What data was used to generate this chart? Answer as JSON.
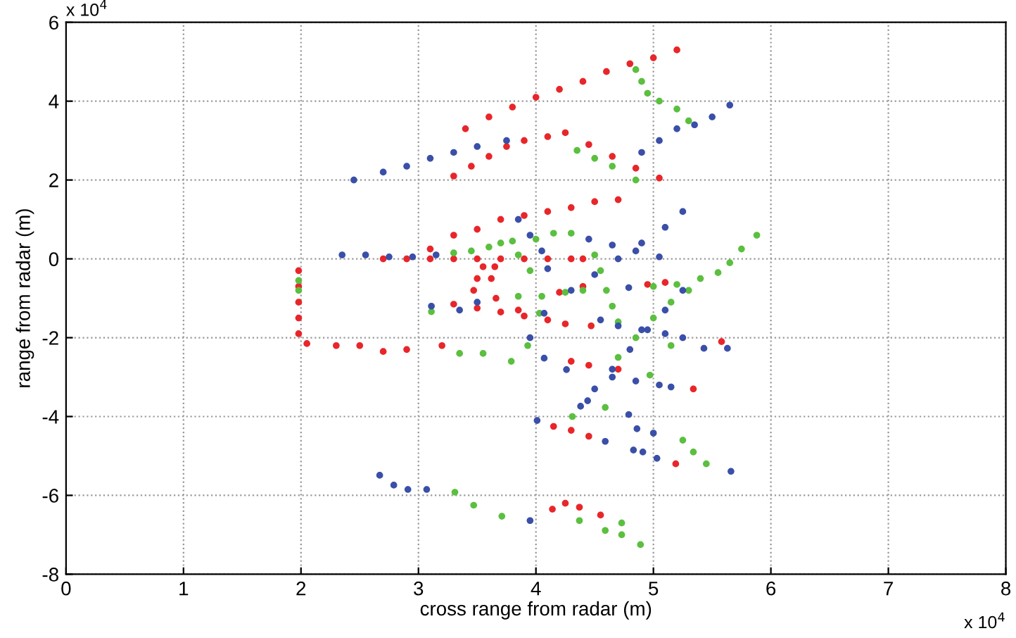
{
  "chart_data": {
    "type": "scatter",
    "xlabel": "cross range from radar (m)",
    "ylabel": "range from radar (m)",
    "annotations": [
      "x 10$^{4}$",
      "x 10$^{4}$"
    ],
    "xlim": [
      0,
      8
    ],
    "ylim": [
      -8,
      6
    ],
    "xticks": [
      0,
      1,
      2,
      3,
      4,
      5,
      6,
      7,
      8
    ],
    "yticks": [
      -8,
      -6,
      -4,
      -2,
      0,
      2,
      4,
      6
    ],
    "grid": true,
    "legend": false,
    "marker": "circle",
    "series": [
      {
        "color": "#e8262a",
        "x": [
          3.4,
          3.6,
          3.8,
          4.0,
          4.2,
          4.4,
          4.6,
          4.8,
          5.0,
          5.2,
          3.3,
          3.45,
          3.6,
          3.75,
          3.9,
          4.1,
          4.25,
          4.45,
          4.65,
          4.85,
          5.05,
          3.1,
          3.3,
          3.5,
          3.7,
          3.9,
          4.1,
          4.3,
          4.5,
          4.7,
          2.7,
          2.9,
          3.1,
          3.3,
          3.5,
          3.7,
          3.9,
          4.1,
          4.3,
          4.4,
          3.55,
          3.5,
          3.47,
          3.65,
          3.62,
          1.98,
          1.98,
          1.98,
          1.98,
          1.98,
          2.05,
          2.3,
          2.5,
          2.7,
          2.9,
          3.2,
          3.3,
          3.5,
          3.7,
          3.9,
          4.1,
          4.25,
          3.66,
          3.85,
          4.2,
          4.4,
          4.95,
          5.1,
          4.47,
          4.3,
          4.45,
          4.7,
          5.34,
          5.58,
          4.15,
          4.3,
          4.45,
          5.19,
          4.25,
          4.37,
          4.14,
          4.55
        ],
        "values": [
          3.3,
          3.6,
          3.85,
          4.1,
          4.3,
          4.5,
          4.75,
          4.95,
          5.1,
          5.3,
          2.1,
          2.35,
          2.6,
          2.85,
          3.0,
          3.1,
          3.2,
          2.9,
          2.6,
          2.3,
          2.05,
          0.25,
          0.6,
          0.75,
          1.0,
          1.1,
          1.2,
          1.3,
          1.45,
          1.5,
          0,
          0,
          0,
          0,
          0,
          0,
          0,
          0,
          0,
          0,
          -0.2,
          -0.5,
          -0.8,
          -0.2,
          -0.5,
          -0.3,
          -0.7,
          -1.1,
          -1.5,
          -1.9,
          -2.15,
          -2.2,
          -2.2,
          -2.35,
          -2.3,
          -2.2,
          -1.15,
          -1.25,
          -1.35,
          -1.45,
          -1.55,
          -1.65,
          -1.0,
          -1.3,
          -0.85,
          -0.7,
          -0.65,
          -0.6,
          -1.7,
          -2.6,
          -2.7,
          -2.8,
          -3.3,
          -2.1,
          -4.25,
          -4.35,
          -4.5,
          -5.2,
          -6.2,
          -6.3,
          -6.35,
          -6.5
        ]
      },
      {
        "color": "#5bbf3f",
        "x": [
          4.85,
          4.9,
          4.95,
          5.05,
          5.2,
          5.3,
          4.35,
          4.5,
          4.65,
          4.85,
          3.3,
          3.45,
          3.6,
          3.8,
          4.0,
          4.15,
          4.3,
          3.7,
          3.85,
          3.95,
          5.0,
          5.2,
          5.4,
          5.55,
          5.65,
          5.75,
          5.88,
          4.7,
          4.85,
          5.0,
          5.15,
          5.3,
          4.5,
          4.55,
          4.6,
          4.65,
          4.7,
          3.85,
          4.05,
          4.25,
          4.4,
          1.98,
          1.98,
          3.11,
          4.03,
          3.93,
          3.35,
          3.55,
          3.79,
          5.15,
          4.97,
          4.59,
          4.31,
          5.25,
          5.34,
          5.45,
          3.31,
          3.47,
          3.71,
          4.37,
          4.59,
          4.73,
          4.73,
          4.89
        ],
        "values": [
          4.8,
          4.5,
          4.2,
          4.0,
          3.8,
          3.5,
          2.75,
          2.55,
          2.35,
          2.0,
          0.15,
          0.2,
          0.3,
          0.45,
          0.5,
          0.65,
          0.65,
          0.4,
          0.1,
          -0.3,
          -0.7,
          -0.65,
          -0.5,
          -0.35,
          -0.1,
          0.25,
          0.6,
          -2.5,
          -2.0,
          -1.5,
          -1.1,
          -0.8,
          0.1,
          -0.3,
          -0.8,
          -1.2,
          -1.6,
          -0.95,
          -0.95,
          -0.85,
          -0.8,
          -0.55,
          -0.8,
          -1.34,
          -1.38,
          -2.2,
          -2.4,
          -2.4,
          -2.6,
          -2.2,
          -2.95,
          -3.77,
          -4.0,
          -4.6,
          -4.9,
          -5.2,
          -5.92,
          -6.25,
          -6.53,
          -6.64,
          -6.89,
          -7.0,
          -6.7,
          -7.25
        ]
      },
      {
        "color": "#3a4fa8",
        "x": [
          2.45,
          2.7,
          2.9,
          3.1,
          3.3,
          3.5,
          3.75,
          4.9,
          5.05,
          5.2,
          5.35,
          5.5,
          5.65,
          2.35,
          2.55,
          2.75,
          2.95,
          3.15,
          3.85,
          3.95,
          4.05,
          4.1,
          4.45,
          4.65,
          4.85,
          5.05,
          4.3,
          4.5,
          4.7,
          4.9,
          5.1,
          5.25,
          5.25,
          5.1,
          4.95,
          4.8,
          4.65,
          4.5,
          4.7,
          4.9,
          5.1,
          5.25,
          5.43,
          5.63,
          4.65,
          4.85,
          5.05,
          5.15,
          3.11,
          3.35,
          3.5,
          4.07,
          3.95,
          4.55,
          4.79,
          4.07,
          4.26,
          4.01,
          4.38,
          4.44,
          4.79,
          4.86,
          5.0,
          4.59,
          4.83,
          4.91,
          5.03,
          5.66,
          2.67,
          2.79,
          2.91,
          3.07,
          3.95
        ],
        "values": [
          2.0,
          2.2,
          2.35,
          2.55,
          2.7,
          2.85,
          3.0,
          2.7,
          3.0,
          3.3,
          3.4,
          3.6,
          3.9,
          0.1,
          0.1,
          0.05,
          0.05,
          0.1,
          1.0,
          0.6,
          0.2,
          -0.25,
          0.5,
          0.35,
          0.2,
          0.05,
          -0.8,
          -0.4,
          0.0,
          0.4,
          0.8,
          1.2,
          -0.8,
          -1.3,
          -1.8,
          -2.3,
          -2.8,
          -3.3,
          -1.7,
          -1.8,
          -1.9,
          -2.0,
          -2.27,
          -2.27,
          -3.0,
          -3.1,
          -3.2,
          -3.25,
          -1.2,
          -1.3,
          -1.1,
          -1.38,
          -2.0,
          -1.55,
          -0.73,
          -2.52,
          -2.81,
          -4.1,
          -3.74,
          -3.6,
          -3.95,
          -4.31,
          -4.42,
          -4.63,
          -4.85,
          -4.9,
          -5.06,
          -5.39,
          -5.49,
          -5.74,
          -5.85,
          -5.85,
          -6.64
        ]
      }
    ]
  }
}
